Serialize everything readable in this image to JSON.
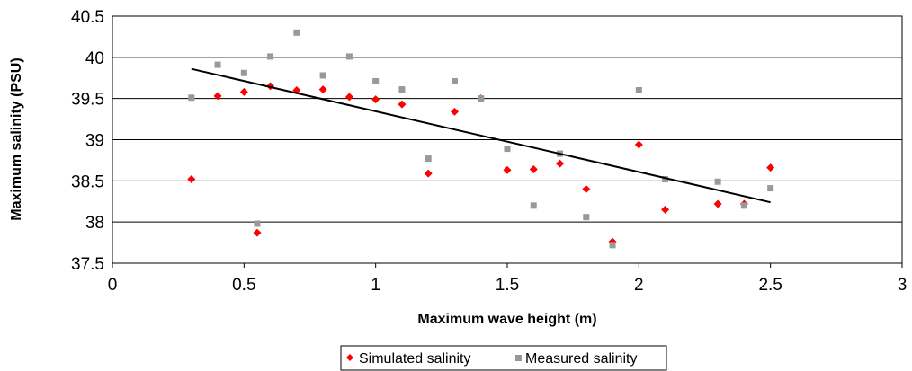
{
  "chart_data": {
    "type": "scatter",
    "xlabel": "Maximum wave height (m)",
    "ylabel": "Maximum salinity (PSU)",
    "xlim": [
      0,
      3
    ],
    "ylim": [
      37.5,
      40.5
    ],
    "x_ticks": [
      "0",
      "0.5",
      "1",
      "1.5",
      "2",
      "2.5",
      "3"
    ],
    "y_ticks": [
      "37.5",
      "38",
      "38.5",
      "39",
      "39.5",
      "40",
      "40.5"
    ],
    "grid": "horizontal",
    "legend_position": "bottom",
    "series": [
      {
        "name": "Simulated salinity",
        "marker": "diamond",
        "color": "#ff0000",
        "points": [
          [
            0.3,
            38.52
          ],
          [
            0.4,
            39.53
          ],
          [
            0.5,
            39.58
          ],
          [
            0.55,
            37.87
          ],
          [
            0.6,
            39.65
          ],
          [
            0.7,
            39.6
          ],
          [
            0.8,
            39.61
          ],
          [
            0.9,
            39.52
          ],
          [
            1.0,
            39.49
          ],
          [
            1.1,
            39.43
          ],
          [
            1.2,
            38.59
          ],
          [
            1.3,
            39.34
          ],
          [
            1.4,
            39.5
          ],
          [
            1.5,
            38.63
          ],
          [
            1.6,
            38.64
          ],
          [
            1.7,
            38.71
          ],
          [
            1.8,
            38.4
          ],
          [
            1.9,
            37.76
          ],
          [
            2.0,
            38.94
          ],
          [
            2.1,
            38.15
          ],
          [
            2.3,
            38.22
          ],
          [
            2.4,
            38.22
          ],
          [
            2.5,
            38.66
          ]
        ]
      },
      {
        "name": "Measured salinity",
        "marker": "square",
        "color": "#999999",
        "points": [
          [
            0.3,
            39.51
          ],
          [
            0.4,
            39.91
          ],
          [
            0.5,
            39.81
          ],
          [
            0.55,
            37.98
          ],
          [
            0.6,
            40.01
          ],
          [
            0.7,
            40.3
          ],
          [
            0.8,
            39.78
          ],
          [
            0.9,
            40.01
          ],
          [
            1.0,
            39.71
          ],
          [
            1.1,
            39.61
          ],
          [
            1.2,
            38.77
          ],
          [
            1.3,
            39.71
          ],
          [
            1.4,
            39.5
          ],
          [
            1.5,
            38.89
          ],
          [
            1.6,
            38.2
          ],
          [
            1.7,
            38.83
          ],
          [
            1.8,
            38.06
          ],
          [
            1.9,
            37.72
          ],
          [
            2.0,
            39.6
          ],
          [
            2.1,
            38.52
          ],
          [
            2.3,
            38.49
          ],
          [
            2.4,
            38.2
          ],
          [
            2.5,
            38.41
          ]
        ]
      }
    ],
    "trendline": {
      "color": "#000000",
      "points": [
        [
          0.3,
          39.86
        ],
        [
          2.5,
          38.24
        ]
      ]
    }
  }
}
